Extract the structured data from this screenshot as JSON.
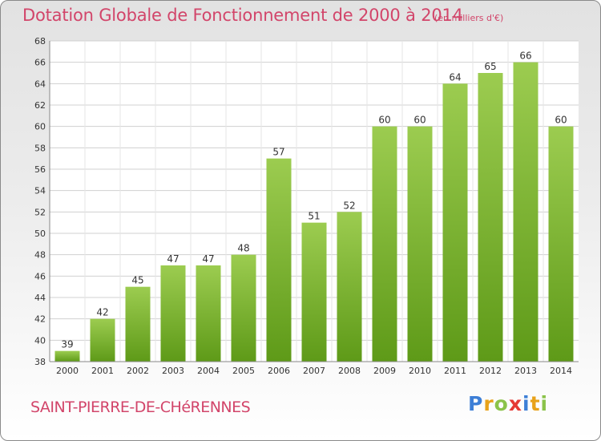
{
  "title": "Dotation Globale de Fonctionnement de 2000 à 2014",
  "subtitle": "(en milliers d'€)",
  "commune": "SAINT-PIERRE-DE-CHéRENNES",
  "logo": {
    "text": "Proxiti",
    "colors": [
      "#3d7fd6",
      "#e8a21a",
      "#8bc34a",
      "#e53935",
      "#3d7fd6",
      "#e8a21a",
      "#8bc34a"
    ]
  },
  "colors": {
    "bar_light": "#9ccc50",
    "bar_dark": "#5e9a18",
    "text": "#d2456a",
    "grid": "#d0d0d0"
  },
  "chart_data": {
    "type": "bar",
    "categories": [
      "2000",
      "2001",
      "2002",
      "2003",
      "2004",
      "2005",
      "2006",
      "2007",
      "2008",
      "2009",
      "2010",
      "2011",
      "2012",
      "2013",
      "2014"
    ],
    "values": [
      39,
      42,
      45,
      47,
      47,
      48,
      57,
      51,
      52,
      60,
      60,
      64,
      65,
      66,
      60
    ],
    "ylim": [
      38,
      68
    ],
    "yticks": [
      38,
      40,
      42,
      44,
      46,
      48,
      50,
      52,
      54,
      56,
      58,
      60,
      62,
      64,
      66,
      68
    ],
    "grid": true,
    "data_labels": true,
    "legend": "none"
  }
}
